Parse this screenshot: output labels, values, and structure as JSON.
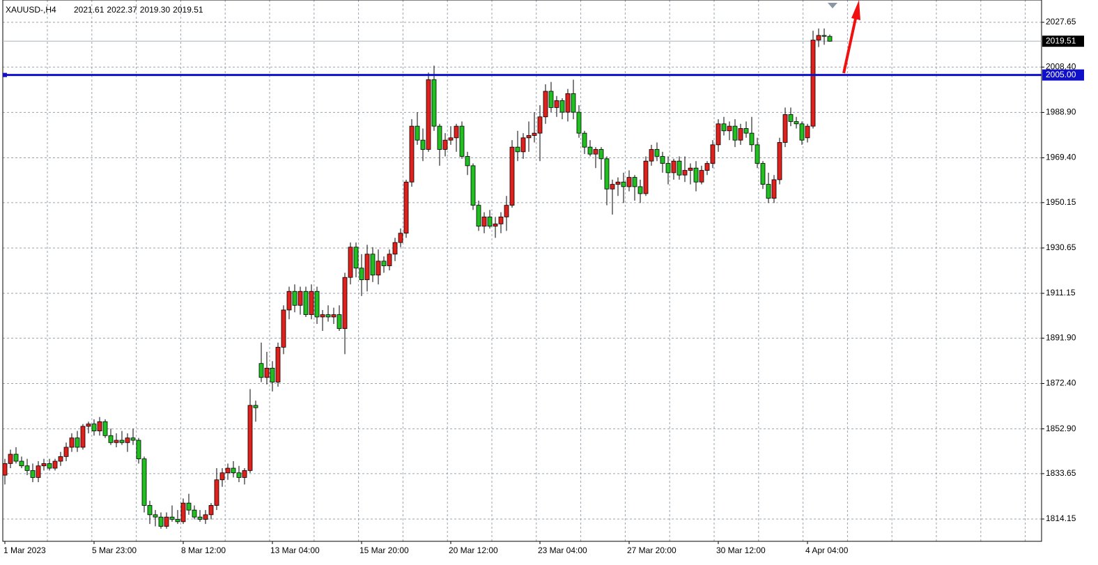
{
  "chart_data": {
    "type": "candlestick",
    "title": "XAUUSD-,H4",
    "header_labels": [
      "2021.61",
      "2022.37",
      "2019.30",
      "2019.51"
    ],
    "up_color": "#e0201c",
    "down_color": "#20c020",
    "ylim": [
      1804.57,
      2037.23
    ],
    "yticks": [
      1814.15,
      1833.65,
      {
        "value": 1852.9,
        "label": "1852.90"
      },
      {
        "value": 1872.4,
        "label": "1872.40"
      },
      {
        "value": 1891.9,
        "label": "1891.90"
      },
      1911.15,
      1930.65,
      1950.15,
      {
        "value": 1969.4,
        "label": "1969.40"
      },
      {
        "value": 1988.9,
        "label": "1988.90"
      },
      {
        "value": 2008.4,
        "label": "2008.40"
      },
      2027.65
    ],
    "grid": true,
    "current_price": {
      "value": 2019.51,
      "label": "2019.51",
      "color": "#000000"
    },
    "level_line": {
      "value": 2005,
      "label": "2005.00",
      "color": "#1010c8"
    },
    "categories": [
      "1 Mar 2023",
      null,
      null,
      null,
      null,
      null,
      null,
      null,
      null,
      null,
      null,
      null,
      null,
      null,
      null,
      null,
      "5 Mar 23:00",
      null,
      null,
      null,
      null,
      null,
      null,
      null,
      null,
      null,
      null,
      null,
      null,
      null,
      null,
      null,
      "8 Mar 12:00",
      null,
      null,
      null,
      null,
      null,
      null,
      null,
      null,
      null,
      null,
      null,
      null,
      null,
      null,
      null,
      "13 Mar 04:00",
      null,
      null,
      null,
      null,
      null,
      null,
      null,
      null,
      null,
      null,
      null,
      null,
      null,
      null,
      null,
      "15 Mar 20:00",
      null,
      null,
      null,
      null,
      null,
      null,
      null,
      null,
      null,
      null,
      null,
      null,
      null,
      null,
      null,
      "20 Mar 12:00",
      null,
      null,
      null,
      null,
      null,
      null,
      null,
      null,
      null,
      null,
      null,
      null,
      null,
      null,
      null,
      "23 Mar 04:00",
      null,
      null,
      null,
      null,
      null,
      null,
      null,
      null,
      null,
      null,
      null,
      null,
      null,
      null,
      null,
      "27 Mar 20:00",
      null,
      null,
      null,
      null,
      null,
      null,
      null,
      null,
      null,
      null,
      null,
      null,
      null,
      null,
      null,
      "30 Mar 12:00",
      null,
      null,
      null,
      null,
      null,
      null,
      null,
      null,
      null,
      null,
      null,
      null,
      null,
      null,
      null,
      "4 Apr 04:00",
      null,
      null,
      null,
      null
    ],
    "ohlc": [
      [
        1833,
        1840,
        1829,
        1838
      ],
      [
        1838,
        1844,
        1836,
        1842
      ],
      [
        1842,
        1845,
        1838,
        1839
      ],
      [
        1839,
        1841,
        1836,
        1837
      ],
      [
        1837,
        1840,
        1833,
        1835
      ],
      [
        1835,
        1838,
        1830,
        1832
      ],
      [
        1832,
        1839,
        1830,
        1837
      ],
      [
        1837,
        1840,
        1835,
        1838
      ],
      [
        1838,
        1840,
        1835,
        1836
      ],
      [
        1836,
        1840,
        1835,
        1839
      ],
      [
        1839,
        1843,
        1837,
        1841
      ],
      [
        1841,
        1847,
        1839,
        1845
      ],
      [
        1845,
        1851,
        1843,
        1849
      ],
      [
        1849,
        1852,
        1843,
        1845
      ],
      [
        1845,
        1855,
        1844,
        1854
      ],
      [
        1854,
        1856,
        1851,
        1855
      ],
      [
        1855,
        1857,
        1850,
        1852
      ],
      [
        1852,
        1858,
        1850,
        1856
      ],
      [
        1856,
        1857,
        1849,
        1850
      ],
      [
        1850,
        1853,
        1846,
        1847
      ],
      [
        1847,
        1851,
        1845,
        1848
      ],
      [
        1848,
        1852,
        1846,
        1847
      ],
      [
        1847,
        1851,
        1843,
        1849
      ],
      [
        1849,
        1853,
        1846,
        1848
      ],
      [
        1848,
        1849,
        1838,
        1840
      ],
      [
        1840,
        1841,
        1817,
        1820
      ],
      [
        1820,
        1822,
        1812,
        1816
      ],
      [
        1816,
        1818,
        1811,
        1815
      ],
      [
        1815,
        1817,
        1810,
        1811
      ],
      [
        1811,
        1817,
        1810,
        1815
      ],
      [
        1815,
        1820,
        1813,
        1814
      ],
      [
        1814,
        1818,
        1812,
        1813
      ],
      [
        1813,
        1823,
        1812,
        1821
      ],
      [
        1821,
        1825,
        1816,
        1818
      ],
      [
        1818,
        1820,
        1814,
        1815
      ],
      [
        1815,
        1818,
        1813,
        1814
      ],
      [
        1814,
        1818,
        1812,
        1816
      ],
      [
        1816,
        1821,
        1814,
        1820
      ],
      [
        1820,
        1836,
        1818,
        1831
      ],
      [
        1831,
        1836,
        1828,
        1834
      ],
      [
        1834,
        1838,
        1831,
        1836
      ],
      [
        1836,
        1839,
        1832,
        1834
      ],
      [
        1834,
        1837,
        1830,
        1832
      ],
      [
        1832,
        1836,
        1829,
        1835
      ],
      [
        1835,
        1870,
        1834,
        1863
      ],
      [
        1863,
        1865,
        1856,
        1862
      ],
      [
        1881,
        1890,
        1873,
        1875
      ],
      [
        1875,
        1886,
        1872,
        1879
      ],
      [
        1879,
        1882,
        1869,
        1873
      ],
      [
        1873,
        1890,
        1871,
        1888
      ],
      [
        1888,
        1906,
        1885,
        1904
      ],
      [
        1904,
        1914,
        1900,
        1912
      ],
      [
        1912,
        1915,
        1903,
        1906
      ],
      [
        1906,
        1914,
        1902,
        1912
      ],
      [
        1912,
        1914,
        1901,
        1902
      ],
      [
        1902,
        1915,
        1900,
        1912
      ],
      [
        1912,
        1914,
        1898,
        1901
      ],
      [
        1901,
        1904,
        1895,
        1902
      ],
      [
        1902,
        1906,
        1899,
        1901
      ],
      [
        1901,
        1905,
        1898,
        1902
      ],
      [
        1902,
        1906,
        1895,
        1896
      ],
      [
        1896,
        1920,
        1885,
        1918
      ],
      [
        1918,
        1933,
        1915,
        1931
      ],
      [
        1931,
        1933,
        1918,
        1922
      ],
      [
        1922,
        1928,
        1910,
        1917
      ],
      [
        1917,
        1932,
        1912,
        1928
      ],
      [
        1928,
        1931,
        1916,
        1919
      ],
      [
        1919,
        1930,
        1915,
        1925
      ],
      [
        1925,
        1927,
        1920,
        1923
      ],
      [
        1923,
        1930,
        1921,
        1928
      ],
      [
        1928,
        1935,
        1925,
        1933
      ],
      [
        1933,
        1939,
        1931,
        1937
      ],
      [
        1937,
        1960,
        1935,
        1959
      ],
      [
        1959,
        1986,
        1957,
        1983
      ],
      [
        1983,
        1989,
        1975,
        1977
      ],
      [
        1977,
        1982,
        1968,
        1973
      ],
      [
        1973,
        2006,
        1972,
        2003
      ],
      [
        2003,
        2009,
        1981,
        1983
      ],
      [
        1983,
        1984,
        1966,
        1973
      ],
      [
        1973,
        1980,
        1970,
        1977
      ],
      [
        1977,
        1983,
        1975,
        1978
      ],
      [
        1978,
        1984,
        1972,
        1983
      ],
      [
        1983,
        1985,
        1969,
        1970
      ],
      [
        1970,
        1972,
        1962,
        1966
      ],
      [
        1966,
        1967,
        1947,
        1949
      ],
      [
        1949,
        1951,
        1938,
        1940
      ],
      [
        1940,
        1946,
        1937,
        1944
      ],
      [
        1944,
        1947,
        1939,
        1940
      ],
      [
        1940,
        1944,
        1935,
        1941
      ],
      [
        1941,
        1946,
        1937,
        1944
      ],
      [
        1944,
        1953,
        1938,
        1949
      ],
      [
        1949,
        1977,
        1948,
        1974
      ],
      [
        1974,
        1981,
        1968,
        1972
      ],
      [
        1972,
        1980,
        1969,
        1978
      ],
      [
        1978,
        1985,
        1972,
        1979
      ],
      [
        1979,
        1989,
        1976,
        1980
      ],
      [
        1980,
        1992,
        1968,
        1987
      ],
      [
        1987,
        2001,
        1984,
        1998
      ],
      [
        1998,
        2002,
        1989,
        1991
      ],
      [
        1991,
        1996,
        1987,
        1994
      ],
      [
        1994,
        1995,
        1986,
        1989
      ],
      [
        1989,
        1999,
        1985,
        1997
      ],
      [
        1997,
        2003,
        1986,
        1989
      ],
      [
        1989,
        1992,
        1978,
        1980
      ],
      [
        1980,
        1981,
        1971,
        1974
      ],
      [
        1974,
        1977,
        1970,
        1971
      ],
      [
        1971,
        1974,
        1965,
        1973
      ],
      [
        1973,
        1974,
        1960,
        1969
      ],
      [
        1969,
        1970,
        1949,
        1956
      ],
      [
        1956,
        1960,
        1945,
        1958
      ],
      [
        1958,
        1961,
        1953,
        1959
      ],
      [
        1959,
        1963,
        1950,
        1957
      ],
      [
        1957,
        1964,
        1955,
        1961
      ],
      [
        1961,
        1962,
        1951,
        1957
      ],
      [
        1957,
        1960,
        1950,
        1954
      ],
      [
        1954,
        1970,
        1953,
        1968
      ],
      [
        1968,
        1975,
        1966,
        1973
      ],
      [
        1973,
        1976,
        1968,
        1970
      ],
      [
        1970,
        1972,
        1963,
        1967
      ],
      [
        1967,
        1970,
        1958,
        1963
      ],
      [
        1963,
        1969,
        1960,
        1968
      ],
      [
        1968,
        1970,
        1960,
        1962
      ],
      [
        1962,
        1970,
        1959,
        1964
      ],
      [
        1964,
        1967,
        1958,
        1965
      ],
      [
        1965,
        1968,
        1955,
        1959
      ],
      [
        1959,
        1966,
        1958,
        1964
      ],
      [
        1964,
        1968,
        1962,
        1967
      ],
      [
        1967,
        1977,
        1965,
        1975
      ],
      [
        1975,
        1986,
        1972,
        1984
      ],
      [
        1984,
        1987,
        1979,
        1981
      ],
      [
        1981,
        1985,
        1977,
        1983
      ],
      [
        1983,
        1986,
        1974,
        1977
      ],
      [
        1977,
        1984,
        1975,
        1982
      ],
      [
        1982,
        1985,
        1978,
        1980
      ],
      [
        1980,
        1987,
        1972,
        1975
      ],
      [
        1975,
        1978,
        1965,
        1967
      ],
      [
        1967,
        1968,
        1956,
        1958
      ],
      [
        1958,
        1963,
        1950,
        1952
      ],
      [
        1952,
        1962,
        1950,
        1960
      ],
      [
        1960,
        1978,
        1958,
        1976
      ],
      [
        1976,
        1991,
        1974,
        1988
      ],
      [
        1988,
        1991,
        1983,
        1985
      ],
      [
        1985,
        1987,
        1982,
        1984
      ],
      [
        1984,
        1985,
        1975,
        1977
      ],
      [
        1978,
        1984,
        1976,
        1983
      ],
      [
        1983,
        2024,
        1982,
        2020
      ],
      [
        2020,
        2025,
        2017,
        2022
      ],
      [
        2022,
        2025,
        2018,
        2021.6
      ],
      [
        2021.61,
        2022.37,
        2019.3,
        2019.51
      ]
    ]
  }
}
